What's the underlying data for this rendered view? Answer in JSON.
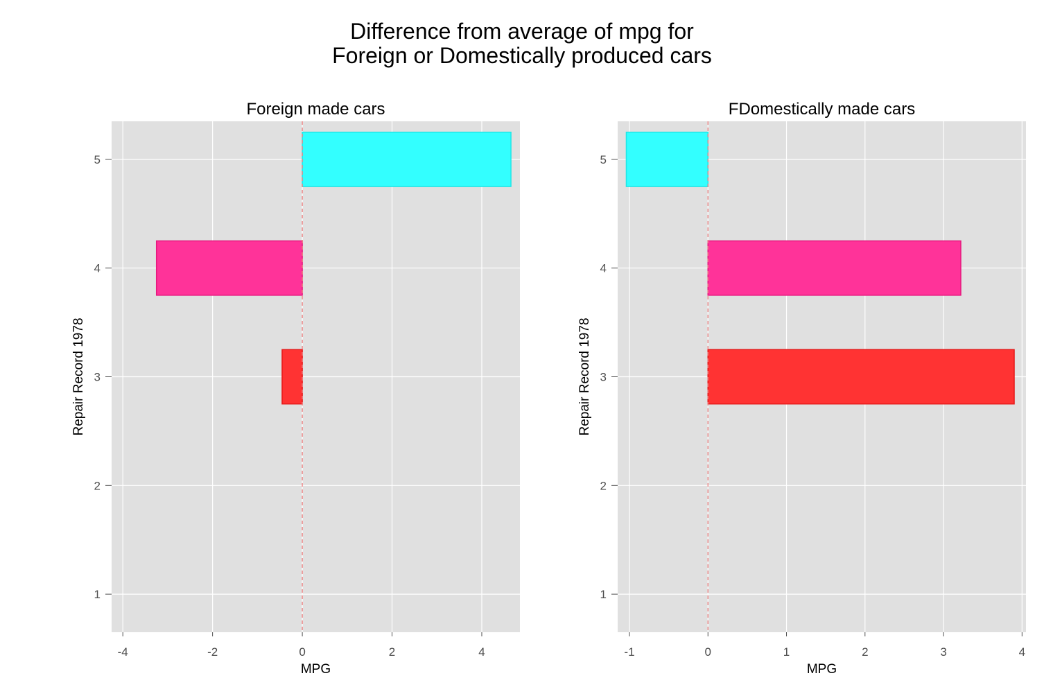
{
  "title": {
    "line1": "Difference from average of mpg for",
    "line2": "Foreign or Domestically produced cars"
  },
  "chart_data": [
    {
      "type": "bar",
      "orientation": "horizontal",
      "title": "Foreign made cars",
      "xlabel": "MPG",
      "ylabel": "Repair Record 1978",
      "xlim": [
        -4.25,
        4.85
      ],
      "ylim": [
        0.65,
        5.35
      ],
      "xticks": [
        -4,
        -2,
        0,
        2,
        4
      ],
      "xtick_labels": [
        "-4",
        "-2",
        "0",
        "2",
        "4"
      ],
      "yticks": [
        1,
        2,
        3,
        4,
        5
      ],
      "ytick_labels": [
        "1",
        "2",
        "3",
        "4",
        "5"
      ],
      "reference_line": 0,
      "grid": true,
      "bars": [
        {
          "category": 5,
          "value": 4.65,
          "fill": "#33FFFF",
          "stroke": "#1FE6E6"
        },
        {
          "category": 4,
          "value": -3.25,
          "fill": "#FF3399",
          "stroke": "#E6197F"
        },
        {
          "category": 3,
          "value": -0.45,
          "fill": "#FF3333",
          "stroke": "#E61919"
        }
      ]
    },
    {
      "type": "bar",
      "orientation": "horizontal",
      "title": "FDomestically made cars",
      "xlabel": "MPG",
      "ylabel": "Repair Record 1978",
      "xlim": [
        -1.15,
        4.05
      ],
      "ylim": [
        0.65,
        5.35
      ],
      "xticks": [
        -1,
        0,
        1,
        2,
        3,
        4
      ],
      "xtick_labels": [
        "-1",
        "0",
        "1",
        "2",
        "3",
        "4"
      ],
      "yticks": [
        1,
        2,
        3,
        4,
        5
      ],
      "ytick_labels": [
        "1",
        "2",
        "3",
        "4",
        "5"
      ],
      "reference_line": 0,
      "grid": true,
      "bars": [
        {
          "category": 5,
          "value": -1.04,
          "fill": "#33FFFF",
          "stroke": "#1FE6E6"
        },
        {
          "category": 4,
          "value": 3.22,
          "fill": "#FF3399",
          "stroke": "#E6197F"
        },
        {
          "category": 3,
          "value": 3.9,
          "fill": "#FF3333",
          "stroke": "#E61919"
        }
      ]
    }
  ],
  "colors": {
    "panel_background": "#E0E0E0",
    "grid": "#FFFFFF",
    "reference_line": "#F08080",
    "tick": "#4d4d4d"
  }
}
